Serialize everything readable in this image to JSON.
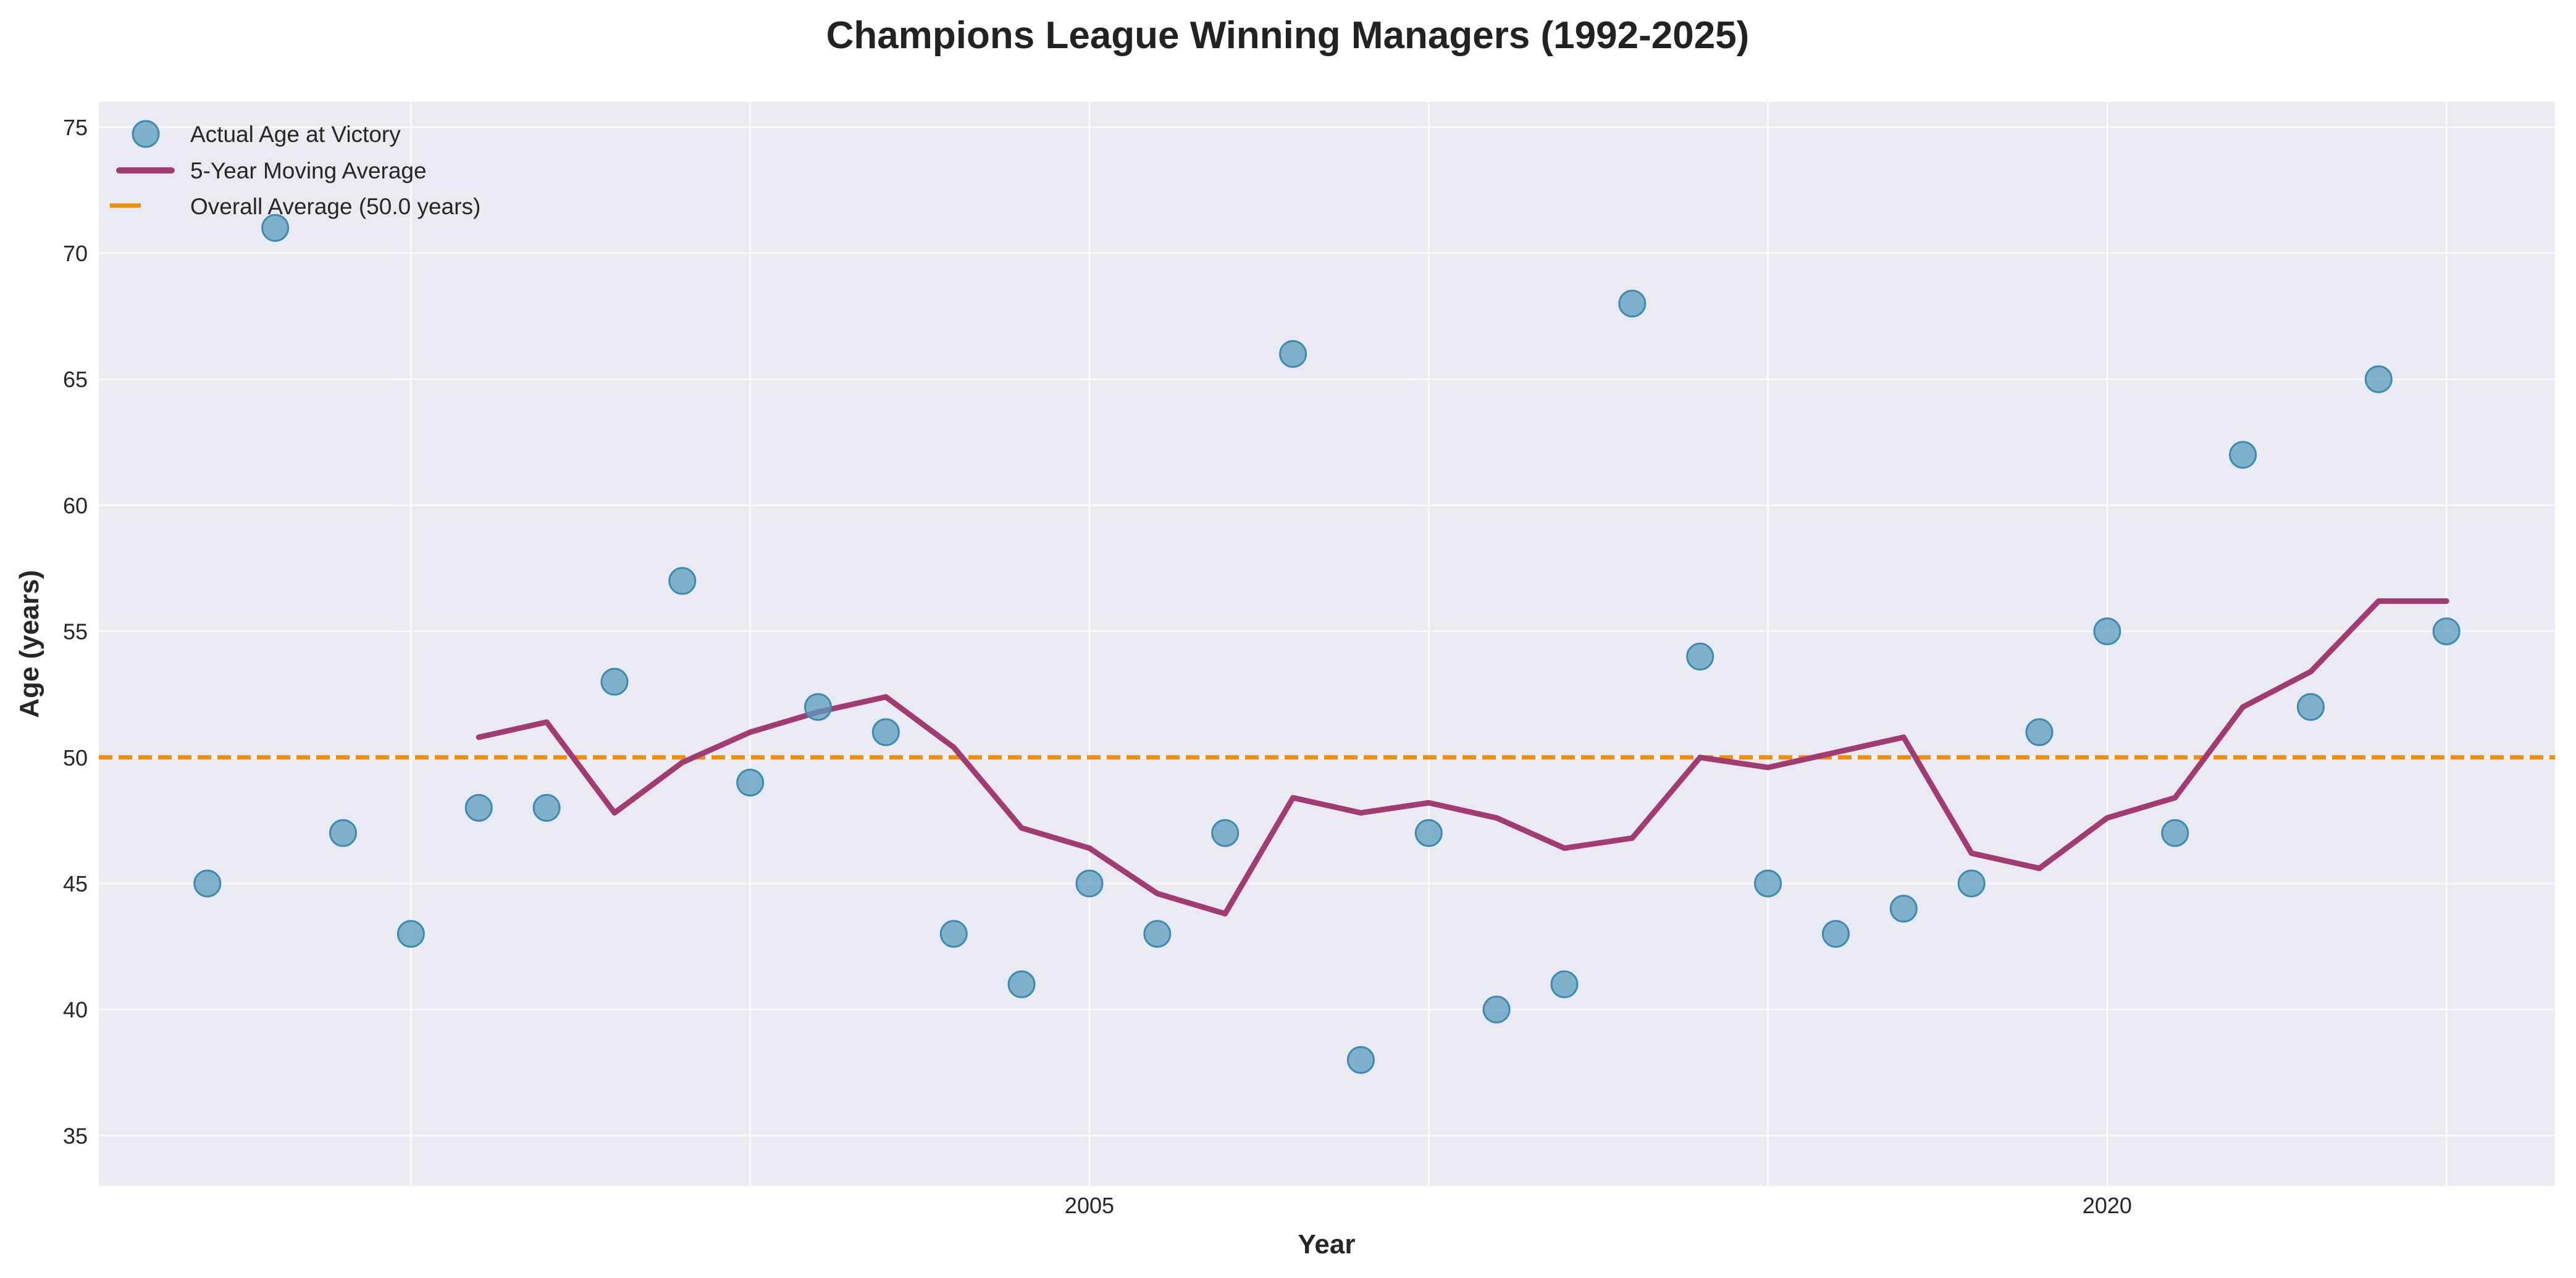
{
  "chart_data": {
    "type": "line",
    "title": "Champions League Winning Managers (1992-2025)",
    "xlabel": "Year",
    "ylabel": "Age (years)",
    "xlim": [
      1990.4,
      2026.6
    ],
    "ylim": [
      33,
      76
    ],
    "x_ticks": [
      2005,
      2020
    ],
    "y_ticks": [
      35,
      40,
      45,
      50,
      55,
      60,
      65,
      70,
      75
    ],
    "grid": true,
    "legend_position": "top-left",
    "x": [
      1992,
      1993,
      1994,
      1995,
      1996,
      1997,
      1998,
      1999,
      2000,
      2001,
      2002,
      2003,
      2004,
      2005,
      2006,
      2007,
      2008,
      2009,
      2010,
      2011,
      2012,
      2013,
      2014,
      2015,
      2016,
      2017,
      2018,
      2019,
      2020,
      2021,
      2022,
      2023,
      2024,
      2025
    ],
    "series": [
      {
        "name": "Actual Age at Victory",
        "type": "scatter",
        "color": "#5b9ebf",
        "values": [
          45,
          71,
          47,
          43,
          48,
          48,
          53,
          57,
          49,
          52,
          51,
          43,
          41,
          45,
          43,
          47,
          66,
          38,
          47,
          40,
          41,
          68,
          54,
          45,
          43,
          44,
          45,
          51,
          55,
          47,
          62,
          52,
          65,
          55
        ]
      },
      {
        "name": "5-Year Moving Average",
        "type": "line",
        "color": "#a23b72",
        "values": [
          null,
          null,
          null,
          null,
          50.8,
          51.4,
          47.8,
          49.8,
          51.0,
          51.8,
          52.4,
          50.4,
          47.2,
          46.4,
          44.6,
          43.8,
          48.4,
          47.8,
          48.2,
          47.6,
          46.4,
          46.8,
          50.0,
          49.6,
          50.2,
          50.8,
          46.2,
          45.6,
          47.6,
          48.4,
          52.0,
          53.4,
          56.2,
          56.2
        ]
      },
      {
        "name": "Overall Average (50.0 years)",
        "type": "hline",
        "color": "#f18f01",
        "value": 50.0
      }
    ]
  }
}
